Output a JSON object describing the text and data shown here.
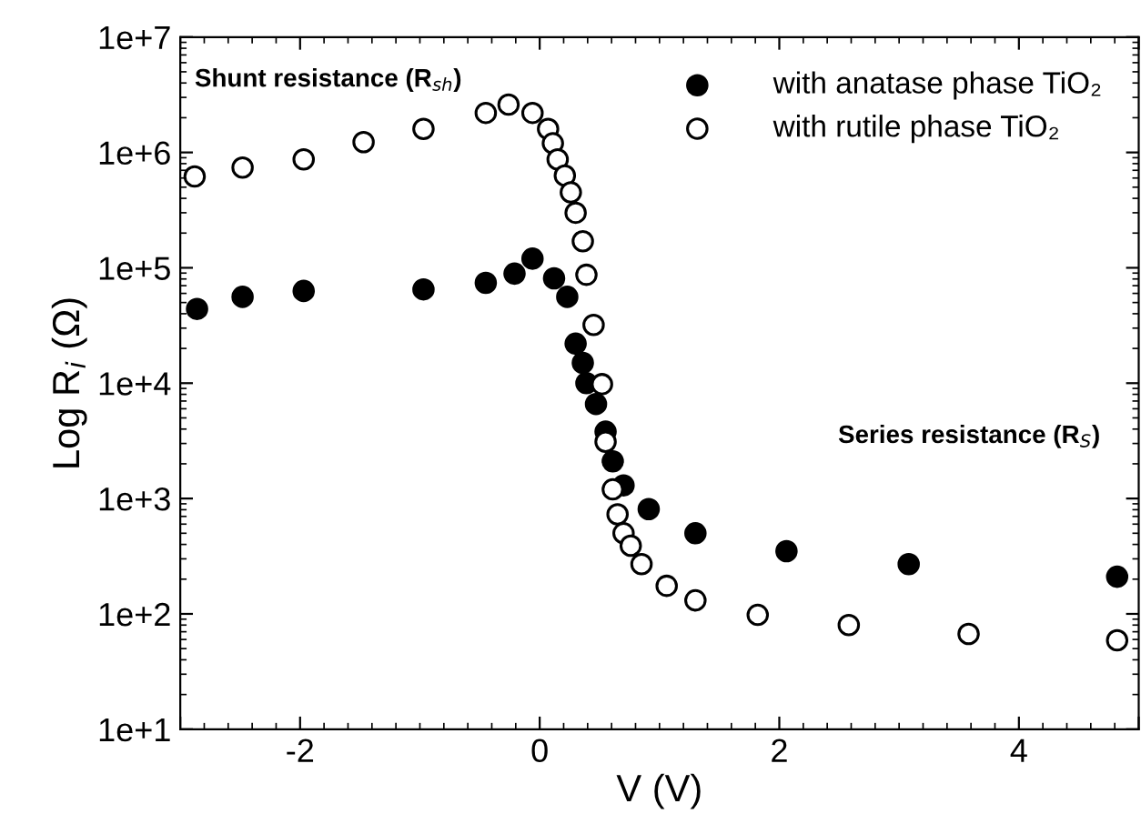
{
  "chart_data": {
    "type": "scatter",
    "xlabel": "V (V)",
    "ylabel": "Log R$_{i}$ (Ω)",
    "log": "y",
    "xlim": [
      -3,
      5
    ],
    "xticks": [
      {
        "value": -3,
        "label": null
      },
      -2,
      0,
      2,
      4,
      {
        "value": 5,
        "label": null
      }
    ],
    "ylim": [
      10,
      10000000
    ],
    "yticks": [
      {
        "value": 10,
        "label": "1e+1"
      },
      {
        "value": 100,
        "label": "1e+2"
      },
      {
        "value": 1000,
        "label": "1e+3"
      },
      {
        "value": 10000,
        "label": "1e+4"
      },
      {
        "value": 100000,
        "label": "1e+5"
      },
      {
        "value": 1000000,
        "label": "1e+6"
      },
      {
        "value": 10000000,
        "label": "1e+7"
      }
    ],
    "grid": false,
    "legend": "top right",
    "marker": "circle",
    "annotations": [
      "Shunt resistance (R$_{sh}$)",
      "Series resistance (R$_{S}$)"
    ],
    "series": [
      {
        "name": "with anatase phase TiO₂",
        "color": "#000000",
        "x": [
          -2.86,
          -2.48,
          -1.97,
          -0.97,
          -0.45,
          -0.21,
          -0.06,
          0.12,
          0.23,
          0.3,
          0.36,
          0.39,
          0.47,
          0.55,
          0.61,
          0.7,
          0.91,
          1.3,
          2.06,
          3.08,
          4.82
        ],
        "values": [
          44000,
          56000,
          63000,
          65000,
          74000,
          89000,
          120000,
          81000,
          56000,
          22000,
          15000,
          10000,
          6600,
          3800,
          2100,
          1300,
          810,
          500,
          350,
          270,
          210
        ]
      },
      {
        "name": "with rutile phase TiO₂",
        "color": "#000000",
        "x": [
          -2.88,
          -2.48,
          -1.97,
          -1.47,
          -0.97,
          -0.45,
          -0.26,
          -0.06,
          0.07,
          0.11,
          0.15,
          0.21,
          0.26,
          0.3,
          0.36,
          0.39,
          0.45,
          0.52,
          0.55,
          0.61,
          0.65,
          0.7,
          0.76,
          0.85,
          1.06,
          1.3,
          1.82,
          2.58,
          3.58,
          4.82
        ],
        "values": [
          620000,
          740000,
          870000,
          1230000,
          1600000,
          2200000,
          2600000,
          2200000,
          1600000,
          1200000,
          870000,
          630000,
          450000,
          300000,
          170000,
          87000,
          32000,
          9800,
          3100,
          1200,
          730,
          500,
          390,
          270,
          175,
          131,
          98,
          80,
          67,
          59
        ]
      }
    ]
  }
}
